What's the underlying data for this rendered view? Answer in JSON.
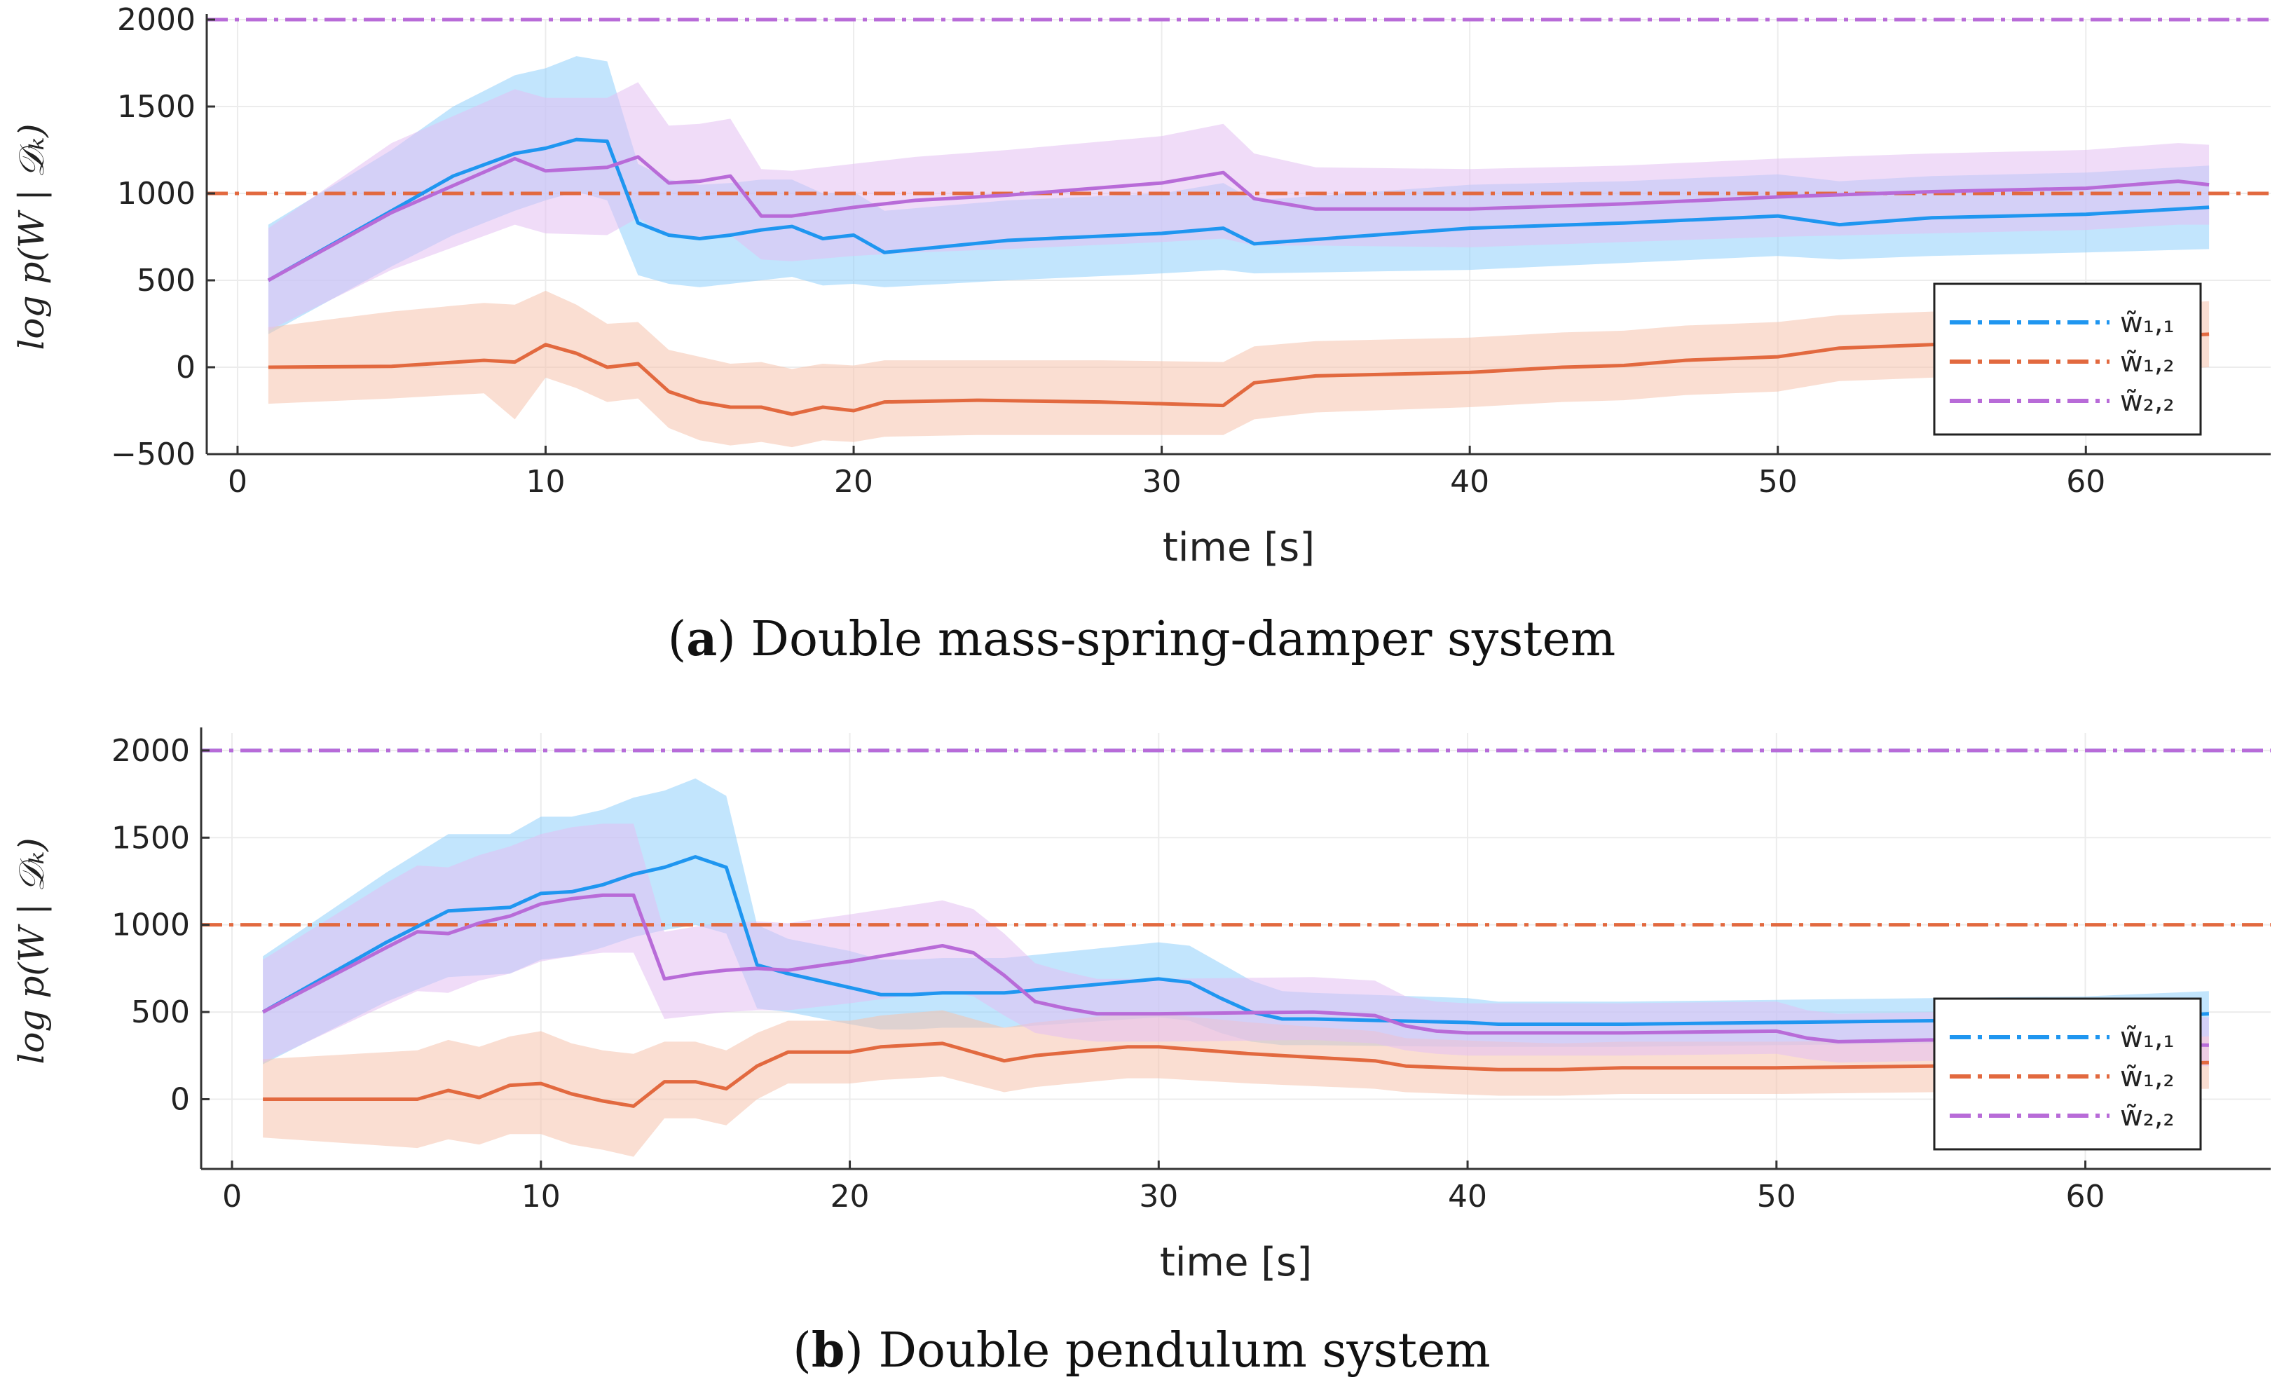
{
  "figure": {
    "x_tick_labels": [
      "0",
      "10",
      "20",
      "30",
      "40",
      "50",
      "60"
    ],
    "xlabel": "time [s]",
    "ylabel": "log p(W | 𝒟ₖ)",
    "legend_entries": [
      "w̃₁,₁",
      "w̃₁,₂",
      "w̃₂,₂"
    ],
    "colors": {
      "w11": "#1f96f0",
      "w12": "#e2693f",
      "w22": "#b86bd8",
      "w11_band": "#8fd0fb",
      "w12_band": "#f6c2ad",
      "w22_band": "#e4bff2",
      "grid": "#ececec",
      "axis": "#333333"
    }
  },
  "chart_data": [
    {
      "type": "line",
      "panel_label": "a",
      "title": "Double mass-spring-damper system",
      "xlabel": "time [s]",
      "ylabel": "log p(W | 𝒟ₖ)",
      "xlim": [
        -1,
        66
      ],
      "ylim": [
        -500,
        2000
      ],
      "x_ticks": [
        0,
        10,
        20,
        30,
        40,
        50,
        60
      ],
      "y_ticks": [
        -500,
        0,
        500,
        1000,
        1500,
        2000
      ],
      "y_tick_labels": [
        "−500",
        "0",
        "500",
        "1000",
        "1500",
        "2000"
      ],
      "legend_position": "bottom-right",
      "reference_lines": [
        {
          "name": "w̃₁,₁",
          "value": 2000,
          "style": "dash-dot",
          "color_key": "w11"
        },
        {
          "name": "w̃₁,₂",
          "value": 1000,
          "style": "dash-dot",
          "color_key": "w12"
        },
        {
          "name": "w̃₂,₂",
          "value": 2000,
          "style": "dash-dot",
          "color_key": "w22"
        }
      ],
      "series": [
        {
          "name": "w̃₁,₁ estimate",
          "color_key": "w11",
          "band_key": "w11_band",
          "x": [
            1,
            5,
            7,
            9,
            10,
            11,
            12,
            13,
            14,
            15,
            16,
            17,
            18,
            19,
            20,
            21,
            25,
            30,
            32,
            33,
            40,
            45,
            50,
            52,
            55,
            60,
            64
          ],
          "values": [
            500,
            900,
            1100,
            1230,
            1260,
            1310,
            1300,
            830,
            760,
            740,
            760,
            790,
            810,
            740,
            760,
            660,
            730,
            770,
            800,
            710,
            800,
            830,
            870,
            820,
            860,
            880,
            920
          ],
          "lower": [
            190,
            580,
            760,
            900,
            960,
            1010,
            960,
            530,
            480,
            460,
            480,
            500,
            520,
            470,
            480,
            460,
            500,
            540,
            560,
            540,
            560,
            600,
            640,
            620,
            640,
            660,
            680
          ],
          "upper": [
            820,
            1250,
            1500,
            1680,
            1720,
            1790,
            1760,
            1170,
            1080,
            1050,
            1060,
            1080,
            1080,
            1000,
            1010,
            900,
            960,
            1000,
            1060,
            960,
            1050,
            1070,
            1110,
            1070,
            1100,
            1120,
            1160
          ]
        },
        {
          "name": "w̃₁,₂ estimate",
          "color_key": "w12",
          "band_key": "w12_band",
          "x": [
            1,
            5,
            8,
            9,
            10,
            11,
            12,
            13,
            14,
            15,
            16,
            17,
            18,
            19,
            20,
            21,
            24,
            28,
            32,
            33,
            35,
            40,
            43,
            45,
            47,
            50,
            52,
            55,
            58,
            60,
            64
          ],
          "values": [
            0,
            5,
            40,
            30,
            130,
            80,
            0,
            20,
            -140,
            -200,
            -230,
            -230,
            -270,
            -230,
            -250,
            -200,
            -190,
            -200,
            -220,
            -90,
            -50,
            -30,
            0,
            10,
            40,
            60,
            110,
            130,
            150,
            160,
            190
          ],
          "lower": [
            -210,
            -180,
            -150,
            -300,
            -60,
            -120,
            -200,
            -180,
            -350,
            -420,
            -450,
            -430,
            -460,
            -420,
            -430,
            -400,
            -390,
            -390,
            -390,
            -300,
            -260,
            -230,
            -200,
            -190,
            -160,
            -140,
            -80,
            -60,
            -40,
            -30,
            0
          ],
          "upper": [
            230,
            320,
            370,
            360,
            440,
            360,
            250,
            260,
            100,
            60,
            20,
            30,
            -10,
            20,
            10,
            40,
            40,
            40,
            30,
            120,
            150,
            170,
            200,
            210,
            240,
            260,
            300,
            320,
            330,
            340,
            380
          ]
        },
        {
          "name": "w̃₂,₂ estimate",
          "color_key": "w22",
          "band_key": "w22_band",
          "x": [
            1,
            5,
            9,
            10,
            12,
            13,
            14,
            15,
            16,
            17,
            18,
            20,
            22,
            25,
            30,
            32,
            33,
            35,
            40,
            45,
            50,
            55,
            60,
            63,
            64
          ],
          "values": [
            500,
            890,
            1200,
            1130,
            1150,
            1210,
            1060,
            1070,
            1100,
            870,
            870,
            920,
            960,
            990,
            1060,
            1120,
            970,
            910,
            910,
            940,
            980,
            1010,
            1030,
            1070,
            1050
          ],
          "lower": [
            210,
            560,
            820,
            770,
            760,
            860,
            750,
            740,
            760,
            620,
            610,
            640,
            660,
            680,
            720,
            740,
            700,
            700,
            690,
            720,
            750,
            770,
            790,
            820,
            820
          ],
          "upper": [
            800,
            1290,
            1600,
            1550,
            1550,
            1640,
            1390,
            1400,
            1430,
            1140,
            1130,
            1170,
            1210,
            1250,
            1330,
            1400,
            1230,
            1150,
            1140,
            1160,
            1200,
            1230,
            1250,
            1290,
            1280
          ]
        }
      ]
    },
    {
      "type": "line",
      "panel_label": "b",
      "title": "Double pendulum system",
      "xlabel": "time [s]",
      "ylabel": "log p(W | 𝒟ₖ)",
      "xlim": [
        -1,
        66
      ],
      "ylim": [
        -400,
        2100
      ],
      "x_ticks": [
        0,
        10,
        20,
        30,
        40,
        50,
        60
      ],
      "y_ticks": [
        0,
        500,
        1000,
        1500,
        2000
      ],
      "y_tick_labels": [
        "0",
        "500",
        "1000",
        "1500",
        "2000"
      ],
      "legend_position": "bottom-right",
      "reference_lines": [
        {
          "name": "w̃₁,₁",
          "value": 2000,
          "style": "dash-dot",
          "color_key": "w11"
        },
        {
          "name": "w̃₁,₂",
          "value": 1000,
          "style": "dash-dot",
          "color_key": "w12"
        },
        {
          "name": "w̃₂,₂",
          "value": 2000,
          "style": "dash-dot",
          "color_key": "w22"
        }
      ],
      "series": [
        {
          "name": "w̃₁,₁ estimate",
          "color_key": "w11",
          "band_key": "w11_band",
          "x": [
            1,
            5,
            7,
            9,
            10,
            11,
            12,
            13,
            14,
            15,
            16,
            17,
            18,
            20,
            21,
            22,
            23,
            25,
            30,
            31,
            32,
            33,
            34,
            35,
            40,
            41,
            45,
            50,
            55,
            60,
            64
          ],
          "values": [
            500,
            900,
            1080,
            1100,
            1180,
            1190,
            1230,
            1290,
            1330,
            1390,
            1330,
            770,
            720,
            640,
            600,
            600,
            610,
            610,
            690,
            670,
            580,
            500,
            460,
            460,
            440,
            430,
            430,
            440,
            450,
            460,
            490
          ],
          "lower": [
            200,
            560,
            700,
            720,
            800,
            820,
            870,
            930,
            970,
            1000,
            950,
            520,
            500,
            430,
            400,
            400,
            410,
            410,
            470,
            450,
            380,
            330,
            310,
            310,
            300,
            300,
            300,
            310,
            320,
            330,
            360
          ],
          "upper": [
            820,
            1300,
            1520,
            1520,
            1620,
            1620,
            1660,
            1730,
            1770,
            1840,
            1740,
            1000,
            920,
            850,
            800,
            800,
            810,
            810,
            900,
            880,
            780,
            680,
            620,
            610,
            580,
            560,
            560,
            570,
            580,
            590,
            620
          ]
        },
        {
          "name": "w̃₁,₂ estimate",
          "color_key": "w12",
          "band_key": "w12_band",
          "x": [
            1,
            6,
            7,
            8,
            9,
            10,
            11,
            12,
            13,
            14,
            15,
            16,
            17,
            18,
            20,
            21,
            23,
            25,
            26,
            29,
            30,
            33,
            37,
            38,
            41,
            43,
            45,
            50,
            55,
            60,
            64
          ],
          "values": [
            0,
            0,
            50,
            10,
            80,
            90,
            30,
            -10,
            -40,
            100,
            100,
            60,
            190,
            270,
            270,
            300,
            320,
            220,
            250,
            300,
            300,
            260,
            220,
            190,
            170,
            170,
            180,
            180,
            190,
            200,
            210
          ],
          "lower": [
            -220,
            -280,
            -230,
            -260,
            -200,
            -200,
            -260,
            -290,
            -330,
            -110,
            -110,
            -150,
            0,
            90,
            90,
            110,
            130,
            40,
            70,
            120,
            120,
            90,
            60,
            40,
            20,
            20,
            30,
            30,
            40,
            50,
            60
          ],
          "upper": [
            230,
            280,
            340,
            300,
            360,
            390,
            320,
            280,
            260,
            330,
            330,
            280,
            380,
            450,
            450,
            480,
            510,
            410,
            440,
            490,
            490,
            440,
            390,
            350,
            330,
            320,
            330,
            330,
            340,
            350,
            360
          ]
        },
        {
          "name": "w̃₂,₂ estimate",
          "color_key": "w22",
          "band_key": "w22_band",
          "x": [
            1,
            5,
            6,
            7,
            8,
            9,
            10,
            11,
            12,
            13,
            14,
            15,
            16,
            17,
            18,
            20,
            23,
            24,
            25,
            26,
            27,
            28,
            30,
            35,
            36,
            37,
            38,
            39,
            40,
            45,
            50,
            51,
            52,
            55,
            60,
            64
          ],
          "values": [
            500,
            870,
            960,
            950,
            1010,
            1050,
            1120,
            1150,
            1170,
            1170,
            690,
            720,
            740,
            750,
            740,
            790,
            880,
            840,
            710,
            560,
            520,
            490,
            490,
            500,
            490,
            480,
            420,
            390,
            380,
            380,
            390,
            350,
            330,
            340,
            320,
            310
          ],
          "lower": [
            210,
            540,
            620,
            610,
            680,
            720,
            790,
            820,
            840,
            840,
            460,
            480,
            500,
            510,
            510,
            550,
            620,
            590,
            480,
            380,
            350,
            330,
            330,
            340,
            330,
            320,
            280,
            260,
            250,
            250,
            260,
            230,
            210,
            220,
            200,
            190
          ],
          "upper": [
            800,
            1240,
            1340,
            1330,
            1400,
            1450,
            1520,
            1560,
            1580,
            1580,
            960,
            990,
            1010,
            1020,
            1010,
            1060,
            1140,
            1090,
            950,
            780,
            730,
            690,
            690,
            700,
            690,
            680,
            590,
            560,
            550,
            550,
            560,
            510,
            490,
            500,
            480,
            470
          ]
        }
      ]
    }
  ]
}
